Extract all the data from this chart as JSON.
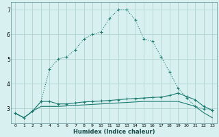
{
  "xlabel": "Humidex (Indice chaleur)",
  "x": [
    0,
    1,
    2,
    3,
    4,
    5,
    6,
    7,
    8,
    9,
    10,
    11,
    12,
    13,
    14,
    15,
    16,
    17,
    18,
    19,
    20,
    21,
    22,
    23
  ],
  "line1": [
    2.8,
    2.62,
    2.88,
    3.28,
    4.6,
    5.0,
    5.1,
    5.38,
    5.82,
    6.0,
    6.1,
    6.65,
    7.0,
    7.0,
    6.6,
    5.82,
    5.72,
    5.1,
    4.48,
    3.82,
    3.42,
    3.08,
    2.98,
    2.92
  ],
  "line2": [
    2.8,
    2.62,
    2.88,
    3.28,
    3.28,
    3.18,
    3.18,
    3.22,
    3.26,
    3.28,
    3.3,
    3.32,
    3.35,
    3.38,
    3.4,
    3.42,
    3.44,
    3.46,
    3.52,
    3.62,
    3.48,
    3.35,
    3.08,
    2.92
  ],
  "line3": [
    2.8,
    2.62,
    2.88,
    3.08,
    3.08,
    3.08,
    3.1,
    3.12,
    3.14,
    3.16,
    3.18,
    3.2,
    3.22,
    3.24,
    3.26,
    3.28,
    3.28,
    3.28,
    3.28,
    3.28,
    3.18,
    3.08,
    2.82,
    2.62
  ],
  "line_color": "#1a7a6e",
  "bg_color": "#d8f0f0",
  "grid_color": "#b0d4d0",
  "ylim": [
    2.4,
    7.3
  ],
  "xlim": [
    -0.5,
    23.5
  ],
  "yticks": [
    3,
    4,
    5,
    6,
    7
  ],
  "xticks": [
    0,
    1,
    2,
    3,
    4,
    5,
    6,
    7,
    8,
    9,
    10,
    11,
    12,
    13,
    14,
    15,
    16,
    17,
    18,
    19,
    20,
    21,
    22,
    23
  ]
}
